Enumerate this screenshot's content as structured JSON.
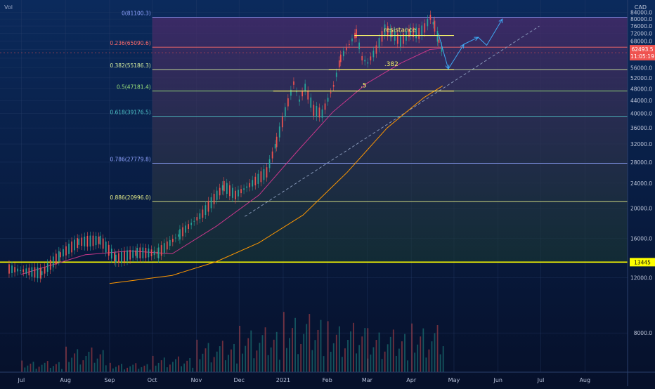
{
  "header": {
    "vol_label": "Vol",
    "currency": "CAD"
  },
  "chart_data": {
    "type": "line",
    "title": "",
    "xlabel": "",
    "ylabel": "",
    "y_scale": "log",
    "ylim": [
      6000,
      92000
    ],
    "grid": true,
    "x_ticks": [
      {
        "label": "Jul",
        "date": "2020-07-01"
      },
      {
        "label": "Aug",
        "date": "2020-08-01"
      },
      {
        "label": "Sep",
        "date": "2020-09-01"
      },
      {
        "label": "Oct",
        "date": "2020-10-01"
      },
      {
        "label": "Nov",
        "date": "2020-11-01"
      },
      {
        "label": "Dec",
        "date": "2020-12-01"
      },
      {
        "label": "2021",
        "date": "2021-01-01"
      },
      {
        "label": "Feb",
        "date": "2021-02-01"
      },
      {
        "label": "Mar",
        "date": "2021-03-01"
      },
      {
        "label": "Apr",
        "date": "2021-04-01"
      },
      {
        "label": "May",
        "date": "2021-05-01"
      },
      {
        "label": "Jun",
        "date": "2021-06-01"
      },
      {
        "label": "Jul",
        "date": "2021-07-01"
      },
      {
        "label": "Aug",
        "date": "2021-08-01"
      }
    ],
    "y_ticks": [
      8000,
      12000,
      16000,
      20000,
      24000,
      28000,
      32000,
      36000,
      40000,
      44000,
      48000,
      52000,
      56000,
      60000,
      64000,
      68000,
      72000,
      76000,
      80000,
      84000
    ],
    "y_tick_labels": [
      "8000.0",
      "12000.0",
      "16000.0",
      "20000.0",
      "24000.0",
      "28000.0",
      "32000.0",
      "36000.0",
      "40000.0",
      "44000.0",
      "48000.0",
      "52000.0",
      "56000.0",
      "60000.0",
      "64000.0",
      "68000.0",
      "72000.0",
      "76000.0",
      "80000.0",
      "84000.0"
    ],
    "fib_levels": [
      {
        "label": "0(81100.3)",
        "value": 81100.3,
        "color": "#8fa3ff"
      },
      {
        "label": "0.236(65090.6)",
        "value": 65090.6,
        "color": "#ff6b6b"
      },
      {
        "label": "0.382(55186.3)",
        "value": 55186.3,
        "color": "#d8f0a0"
      },
      {
        "label": "0.5(47181.4)",
        "value": 47181.4,
        "color": "#9be37a"
      },
      {
        "label": "0.618(39176.5)",
        "value": 39176.5,
        "color": "#4fc3c8"
      },
      {
        "label": "0.786(27779.8)",
        "value": 27779.8,
        "color": "#8fa3ff"
      },
      {
        "label": "0.886(20996.0)",
        "value": 20996.0,
        "color": "#e8f08a"
      },
      {
        "label": "1(13445.0)",
        "value": 13445.0,
        "color": "#ffff00"
      }
    ],
    "fib_start_date": "2020-10-01",
    "price_series": [
      [
        "2020-06-22",
        12800
      ],
      [
        "2020-07-15",
        12400
      ],
      [
        "2020-07-28",
        14200
      ],
      [
        "2020-08-10",
        15600
      ],
      [
        "2020-08-25",
        15800
      ],
      [
        "2020-09-05",
        13800
      ],
      [
        "2020-09-20",
        14400
      ],
      [
        "2020-10-05",
        14400
      ],
      [
        "2020-10-20",
        16500
      ],
      [
        "2020-11-05",
        19200
      ],
      [
        "2020-11-20",
        23500
      ],
      [
        "2020-11-28",
        22000
      ],
      [
        "2020-12-10",
        24000
      ],
      [
        "2020-12-20",
        26000
      ],
      [
        "2020-12-27",
        32500
      ],
      [
        "2021-01-02",
        40500
      ],
      [
        "2021-01-08",
        50000
      ],
      [
        "2021-01-12",
        44000
      ],
      [
        "2021-01-16",
        48500
      ],
      [
        "2021-01-22",
        41000
      ],
      [
        "2021-01-28",
        40000
      ],
      [
        "2021-02-05",
        49000
      ],
      [
        "2021-02-10",
        60000
      ],
      [
        "2021-02-16",
        66500
      ],
      [
        "2021-02-21",
        72000
      ],
      [
        "2021-02-25",
        60000
      ],
      [
        "2021-03-01",
        58000
      ],
      [
        "2021-03-07",
        64000
      ],
      [
        "2021-03-13",
        74000
      ],
      [
        "2021-03-18",
        72000
      ],
      [
        "2021-03-24",
        68000
      ],
      [
        "2021-03-31",
        73000
      ],
      [
        "2021-04-06",
        72000
      ],
      [
        "2021-04-10",
        75000
      ],
      [
        "2021-04-14",
        81100
      ],
      [
        "2021-04-17",
        76000
      ],
      [
        "2021-04-20",
        68000
      ],
      [
        "2021-04-23",
        62493
      ]
    ],
    "ma_short": [
      [
        "2020-07-01",
        12300
      ],
      [
        "2020-08-15",
        14200
      ],
      [
        "2020-09-15",
        14600
      ],
      [
        "2020-10-15",
        14300
      ],
      [
        "2020-11-15",
        17500
      ],
      [
        "2020-12-15",
        22000
      ],
      [
        "2021-01-10",
        30000
      ],
      [
        "2021-02-05",
        40500
      ],
      [
        "2021-03-01",
        50000
      ],
      [
        "2021-03-25",
        58000
      ],
      [
        "2021-04-14",
        64000
      ],
      [
        "2021-04-23",
        64500
      ]
    ],
    "ma_long": [
      [
        "2020-09-01",
        11500
      ],
      [
        "2020-10-15",
        12200
      ],
      [
        "2020-11-15",
        13500
      ],
      [
        "2020-12-15",
        15500
      ],
      [
        "2021-01-15",
        19000
      ],
      [
        "2021-02-15",
        26000
      ],
      [
        "2021-03-15",
        36000
      ],
      [
        "2021-04-10",
        45000
      ],
      [
        "2021-04-23",
        49000
      ]
    ],
    "trendline": [
      [
        "2020-12-05",
        18800
      ],
      [
        "2021-06-30",
        76000
      ]
    ],
    "resistance": {
      "label": "resistance",
      "value": 70900,
      "from": "2021-02-20",
      "to": "2021-05-01"
    },
    "support_382": {
      "label": ".382",
      "value": 55186.3,
      "from": "2021-02-02",
      "to": "2021-05-01"
    },
    "support_5": {
      "label": ".5",
      "value": 47181.4,
      "from": "2020-12-25",
      "to": "2021-05-01"
    },
    "projection_a": [
      [
        "2021-04-20",
        72000
      ],
      [
        "2021-04-27",
        55500
      ],
      [
        "2021-05-08",
        66500
      ]
    ],
    "projection_b": [
      [
        "2021-05-08",
        66500
      ],
      [
        "2021-05-18",
        70000
      ],
      [
        "2021-05-24",
        66000
      ],
      [
        "2021-06-04",
        80000
      ]
    ],
    "volume_bars": [
      [
        "2020-07",
        2,
        0.25
      ],
      [
        "2020-08",
        3,
        0.55
      ],
      [
        "2020-09",
        4,
        0.2
      ],
      [
        "2020-10",
        5,
        0.35
      ],
      [
        "2020-11",
        6,
        0.7
      ],
      [
        "2020-12",
        7,
        1.0
      ],
      [
        "2021-01",
        8,
        1.3
      ],
      [
        "2021-02",
        9,
        1.1
      ],
      [
        "2021-03",
        10,
        0.95
      ],
      [
        "2021-04",
        11,
        1.05
      ]
    ],
    "last_price": {
      "value": 62493.5,
      "label": "62493.5",
      "countdown": "11:05:19"
    }
  },
  "colors": {
    "background_top": "#0b2a5c",
    "background_bottom": "#06102a",
    "fib_zone_top": "#4a2a6a",
    "fib_zone_bottom": "#1a3a30",
    "candle_up": "#26a69a",
    "candle_down": "#ef5350",
    "ma_short": "#c8378a",
    "ma_long": "#ff9800",
    "projection": "#3fa9f5",
    "annotation": "#f5f06a",
    "price_badge": "#ef5350"
  }
}
